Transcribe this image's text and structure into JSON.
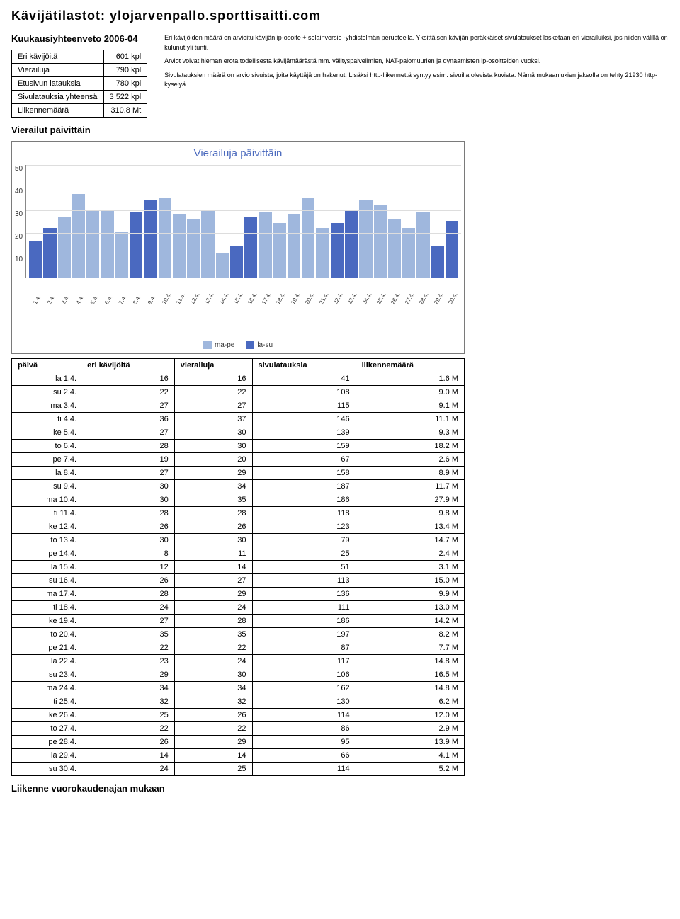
{
  "page_title": "Kävijätilastot: ylojarvenpallo.sporttisaitti.com",
  "subtitle": "Kuukausiyhteenveto 2006-04",
  "summary": {
    "rows": [
      {
        "label": "Eri kävijöitä",
        "value": "601 kpl"
      },
      {
        "label": "Vierailuja",
        "value": "790 kpl"
      },
      {
        "label": "Etusivun latauksia",
        "value": "780 kpl"
      },
      {
        "label": "Sivulatauksia yhteensä",
        "value": "3 522 kpl"
      },
      {
        "label": "Liikennemäärä",
        "value": "310.8 Mt"
      }
    ]
  },
  "explain": {
    "p1": "Eri kävijöiden määrä on arvioitu kävijän ip-osoite + selainversio -yhdistelmän perusteella. Yksittäisen kävijän peräkkäiset sivulataukset lasketaan eri vierailuiksi, jos niiden välillä on kulunut yli tunti.",
    "p2": "Arviot voivat hieman erota todellisesta kävijämäärästä mm. välityspalvelimien, NAT-palomuurien ja dynaamisten ip-osoitteiden vuoksi.",
    "p3": "Sivulatauksien määrä on arvio sivuista, joita käyttäjä on hakenut. Lisäksi http-liikennettä syntyy esim. sivuilla olevista kuvista. Nämä mukaanlukien jaksolla on tehty 21930 http-kyselyä."
  },
  "section_daily": "Vierailut päivittäin",
  "chart": {
    "title": "Vierailuja päivittäin",
    "type": "bar",
    "ymax": 50,
    "yticks": [
      "50",
      "40",
      "30",
      "20",
      "10",
      ""
    ],
    "color_weekday": "#9fb7dd",
    "color_weekend": "#4a69c0",
    "grid_color": "#dddddd",
    "border_color": "#7a7a7a",
    "legend": [
      {
        "label": "ma-pe",
        "color": "#9fb7dd"
      },
      {
        "label": "la-su",
        "color": "#4a69c0"
      }
    ],
    "days": [
      {
        "x": "1.4.",
        "v": 16,
        "weekend": true
      },
      {
        "x": "2.4.",
        "v": 22,
        "weekend": true
      },
      {
        "x": "3.4.",
        "v": 27,
        "weekend": false
      },
      {
        "x": "4.4.",
        "v": 37,
        "weekend": false
      },
      {
        "x": "5.4.",
        "v": 30,
        "weekend": false
      },
      {
        "x": "6.4.",
        "v": 30,
        "weekend": false
      },
      {
        "x": "7.4.",
        "v": 20,
        "weekend": false
      },
      {
        "x": "8.4.",
        "v": 29,
        "weekend": true
      },
      {
        "x": "9.4.",
        "v": 34,
        "weekend": true
      },
      {
        "x": "10.4.",
        "v": 35,
        "weekend": false
      },
      {
        "x": "11.4.",
        "v": 28,
        "weekend": false
      },
      {
        "x": "12.4.",
        "v": 26,
        "weekend": false
      },
      {
        "x": "13.4.",
        "v": 30,
        "weekend": false
      },
      {
        "x": "14.4.",
        "v": 11,
        "weekend": false
      },
      {
        "x": "15.4.",
        "v": 14,
        "weekend": true
      },
      {
        "x": "16.4.",
        "v": 27,
        "weekend": true
      },
      {
        "x": "17.4.",
        "v": 29,
        "weekend": false
      },
      {
        "x": "18.4.",
        "v": 24,
        "weekend": false
      },
      {
        "x": "19.4.",
        "v": 28,
        "weekend": false
      },
      {
        "x": "20.4.",
        "v": 35,
        "weekend": false
      },
      {
        "x": "21.4.",
        "v": 22,
        "weekend": false
      },
      {
        "x": "22.4.",
        "v": 24,
        "weekend": true
      },
      {
        "x": "23.4.",
        "v": 30,
        "weekend": true
      },
      {
        "x": "24.4.",
        "v": 34,
        "weekend": false
      },
      {
        "x": "25.4.",
        "v": 32,
        "weekend": false
      },
      {
        "x": "26.4.",
        "v": 26,
        "weekend": false
      },
      {
        "x": "27.4.",
        "v": 22,
        "weekend": false
      },
      {
        "x": "28.4.",
        "v": 29,
        "weekend": false
      },
      {
        "x": "29.4.",
        "v": 14,
        "weekend": true
      },
      {
        "x": "30.4.",
        "v": 25,
        "weekend": true
      }
    ]
  },
  "table": {
    "columns": [
      "päivä",
      "eri kävijöitä",
      "vierailuja",
      "sivulatauksia",
      "liikennemäärä"
    ],
    "rows": [
      [
        "la 1.4.",
        "16",
        "16",
        "41",
        "1.6 M"
      ],
      [
        "su 2.4.",
        "22",
        "22",
        "108",
        "9.0 M"
      ],
      [
        "ma 3.4.",
        "27",
        "27",
        "115",
        "9.1 M"
      ],
      [
        "ti 4.4.",
        "36",
        "37",
        "146",
        "11.1 M"
      ],
      [
        "ke 5.4.",
        "27",
        "30",
        "139",
        "9.3 M"
      ],
      [
        "to 6.4.",
        "28",
        "30",
        "159",
        "18.2 M"
      ],
      [
        "pe 7.4.",
        "19",
        "20",
        "67",
        "2.6 M"
      ],
      [
        "la 8.4.",
        "27",
        "29",
        "158",
        "8.9 M"
      ],
      [
        "su 9.4.",
        "30",
        "34",
        "187",
        "11.7 M"
      ],
      [
        "ma 10.4.",
        "30",
        "35",
        "186",
        "27.9 M"
      ],
      [
        "ti 11.4.",
        "28",
        "28",
        "118",
        "9.8 M"
      ],
      [
        "ke 12.4.",
        "26",
        "26",
        "123",
        "13.4 M"
      ],
      [
        "to 13.4.",
        "30",
        "30",
        "79",
        "14.7 M"
      ],
      [
        "pe 14.4.",
        "8",
        "11",
        "25",
        "2.4 M"
      ],
      [
        "la 15.4.",
        "12",
        "14",
        "51",
        "3.1 M"
      ],
      [
        "su 16.4.",
        "26",
        "27",
        "113",
        "15.0 M"
      ],
      [
        "ma 17.4.",
        "28",
        "29",
        "136",
        "9.9 M"
      ],
      [
        "ti 18.4.",
        "24",
        "24",
        "111",
        "13.0 M"
      ],
      [
        "ke 19.4.",
        "27",
        "28",
        "186",
        "14.2 M"
      ],
      [
        "to 20.4.",
        "35",
        "35",
        "197",
        "8.2 M"
      ],
      [
        "pe 21.4.",
        "22",
        "22",
        "87",
        "7.7 M"
      ],
      [
        "la 22.4.",
        "23",
        "24",
        "117",
        "14.8 M"
      ],
      [
        "su 23.4.",
        "29",
        "30",
        "106",
        "16.5 M"
      ],
      [
        "ma 24.4.",
        "34",
        "34",
        "162",
        "14.8 M"
      ],
      [
        "ti 25.4.",
        "32",
        "32",
        "130",
        "6.2 M"
      ],
      [
        "ke 26.4.",
        "25",
        "26",
        "114",
        "12.0 M"
      ],
      [
        "to 27.4.",
        "22",
        "22",
        "86",
        "2.9 M"
      ],
      [
        "pe 28.4.",
        "26",
        "29",
        "95",
        "13.9 M"
      ],
      [
        "la 29.4.",
        "14",
        "14",
        "66",
        "4.1 M"
      ],
      [
        "su 30.4.",
        "24",
        "25",
        "114",
        "5.2 M"
      ]
    ]
  },
  "footer_heading": "Liikenne vuorokaudenajan mukaan"
}
